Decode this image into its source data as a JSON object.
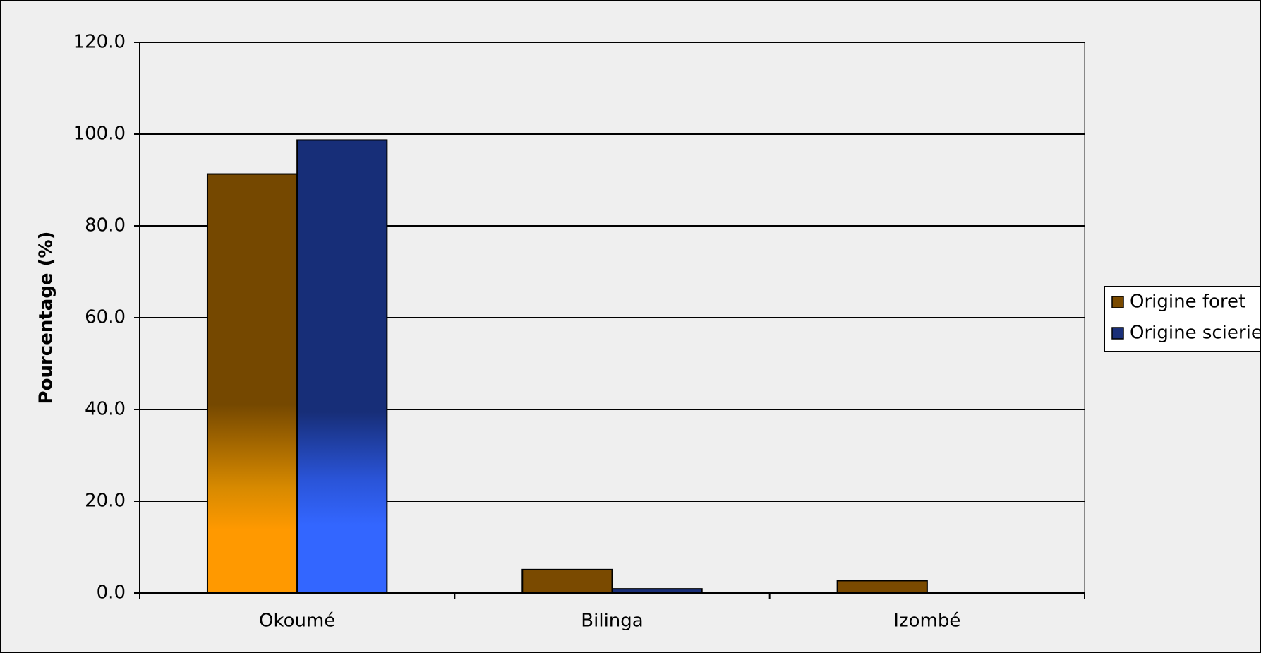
{
  "chart_data": {
    "type": "bar",
    "ylabel": "Pourcentage (%)",
    "categories": [
      "Okoumé",
      "Bilinga",
      "Izombé"
    ],
    "series": [
      {
        "name": "Origine foret",
        "color": "#7a4a00",
        "values": [
          91.3,
          5.1,
          2.7
        ]
      },
      {
        "name": "Origine scierie",
        "color": "#1a2f78",
        "values": [
          98.7,
          0.9,
          0
        ]
      }
    ],
    "ylim": [
      0,
      120
    ],
    "yticks": [
      {
        "value": 0,
        "label": "0.0"
      },
      {
        "value": 20,
        "label": "20.0"
      },
      {
        "value": 40,
        "label": "40.0"
      },
      {
        "value": 60,
        "label": "60.0"
      },
      {
        "value": 80,
        "label": "80.0"
      },
      {
        "value": 100,
        "label": "100.0"
      },
      {
        "value": 120,
        "label": "120.0"
      }
    ],
    "grid": true,
    "legend": "right"
  }
}
